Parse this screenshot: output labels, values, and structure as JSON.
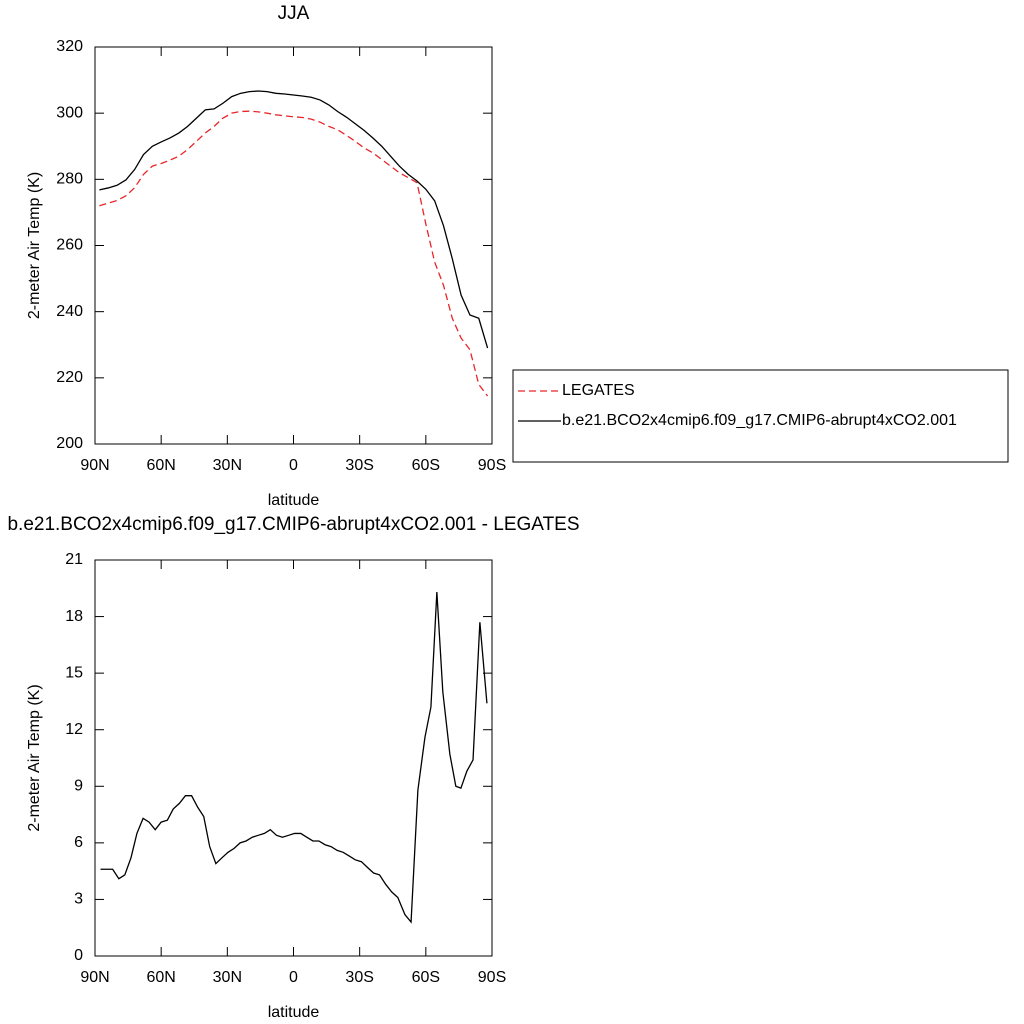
{
  "chart_data": [
    {
      "type": "line",
      "title": "JJA",
      "xlabel": "latitude",
      "ylabel": "2-meter Air Temp (K)",
      "x": [
        88,
        84,
        80,
        76,
        72,
        68,
        64,
        60,
        56,
        52,
        48,
        44,
        40,
        36,
        32,
        28,
        24,
        20,
        16,
        12,
        8,
        4,
        0,
        -4,
        -8,
        -12,
        -16,
        -20,
        -24,
        -28,
        -32,
        -36,
        -40,
        -44,
        -48,
        -52,
        -56,
        -60,
        -64,
        -68,
        -72,
        -76,
        -80,
        -84,
        -88
      ],
      "series": [
        {
          "name": "LEGATES",
          "color": "#e8262a",
          "dashed": true,
          "values": [
            272,
            272.8,
            273.6,
            275,
            277.5,
            281.5,
            284,
            284.8,
            285.8,
            287,
            289,
            291.5,
            294,
            296,
            298.5,
            300,
            300.5,
            300.6,
            300.4,
            300,
            299.5,
            299.2,
            298.9,
            298.7,
            298.2,
            297.3,
            296,
            295,
            293.3,
            291.5,
            289.5,
            288,
            286,
            284,
            282,
            280.5,
            279,
            266.5,
            255,
            248,
            238,
            232,
            228.5,
            218,
            214.5
          ]
        },
        {
          "name": "b.e21.BCO2x4cmip6.f09_g17.CMIP6-abrupt4xCO2.001",
          "color": "#000000",
          "dashed": false,
          "values": [
            276.8,
            277.4,
            278.2,
            279.8,
            283,
            287.5,
            290,
            291.3,
            292.5,
            294,
            296,
            298.5,
            301,
            301.3,
            303,
            305,
            306,
            306.5,
            306.7,
            306.5,
            306,
            305.8,
            305.5,
            305.2,
            304.8,
            304,
            302.5,
            300.5,
            298.8,
            296.8,
            294.8,
            292.5,
            290,
            287,
            284,
            281.5,
            279.5,
            277,
            273.5,
            266,
            256,
            245,
            239,
            238,
            229
          ]
        }
      ],
      "xlim": [
        90,
        -90
      ],
      "xticks": [
        {
          "value": 90,
          "label": "90N"
        },
        {
          "value": 60,
          "label": "60N"
        },
        {
          "value": 30,
          "label": "30N"
        },
        0,
        {
          "value": -30,
          "label": "30S"
        },
        {
          "value": -60,
          "label": "60S"
        },
        {
          "value": -90,
          "label": "90S"
        }
      ],
      "ylim": [
        200,
        320
      ],
      "yticks": [
        200,
        220,
        240,
        260,
        280,
        300,
        320
      ],
      "legend": "right"
    },
    {
      "type": "line",
      "title": "b.e21.BCO2x4cmip6.f09_g17.CMIP6-abrupt4xCO2.001 - LEGATES",
      "xlabel": "latitude",
      "ylabel": "2-meter Air Temp (K)",
      "x": [
        87.5,
        84.7,
        82,
        79.2,
        76.5,
        73.7,
        71,
        68.2,
        65.5,
        62.7,
        60,
        57.2,
        54.5,
        51.7,
        49,
        46.2,
        43.5,
        40.7,
        38,
        35.2,
        32.5,
        29.7,
        27,
        24.2,
        21.5,
        18.7,
        16,
        13.2,
        10.5,
        7.7,
        5,
        2.2,
        -0.5,
        -3.3,
        -6,
        -8.8,
        -11.5,
        -14.3,
        -17,
        -19.8,
        -22.5,
        -25.3,
        -28,
        -30.8,
        -33.5,
        -36.3,
        -39,
        -41.8,
        -44.5,
        -47.3,
        -50.5,
        -53.3,
        -56.4,
        -59.6,
        -62.3,
        -65,
        -67.7,
        -70.9,
        -73.6,
        -75.9,
        -78.6,
        -81.4,
        -84.5,
        -87.7
      ],
      "series": [
        {
          "color": "#000000",
          "dashed": false,
          "values": [
            4.6,
            4.6,
            4.6,
            4.1,
            4.3,
            5.2,
            6.5,
            7.3,
            7.1,
            6.7,
            7.1,
            7.2,
            7.8,
            8.1,
            8.5,
            8.5,
            7.9,
            7.4,
            5.8,
            4.9,
            5.2,
            5.5,
            5.7,
            6,
            6.1,
            6.3,
            6.4,
            6.5,
            6.7,
            6.4,
            6.3,
            6.4,
            6.5,
            6.5,
            6.3,
            6.1,
            6.1,
            5.9,
            5.8,
            5.6,
            5.5,
            5.3,
            5.1,
            5,
            4.7,
            4.4,
            4.3,
            3.8,
            3.4,
            3.1,
            2.2,
            1.8,
            8.8,
            11.6,
            13.2,
            19.3,
            14,
            10.7,
            9,
            8.9,
            9.8,
            10.4,
            17.7,
            13.4
          ]
        }
      ],
      "xlim": [
        90,
        -90
      ],
      "xticks": [
        {
          "value": 90,
          "label": "90N"
        },
        {
          "value": 60,
          "label": "60N"
        },
        {
          "value": 30,
          "label": "30N"
        },
        0,
        {
          "value": -30,
          "label": "30S"
        },
        {
          "value": -60,
          "label": "60S"
        },
        {
          "value": -90,
          "label": "90S"
        }
      ],
      "ylim": [
        0,
        21
      ],
      "yticks": [
        0,
        3,
        6,
        9,
        12,
        15,
        18,
        21
      ]
    }
  ]
}
